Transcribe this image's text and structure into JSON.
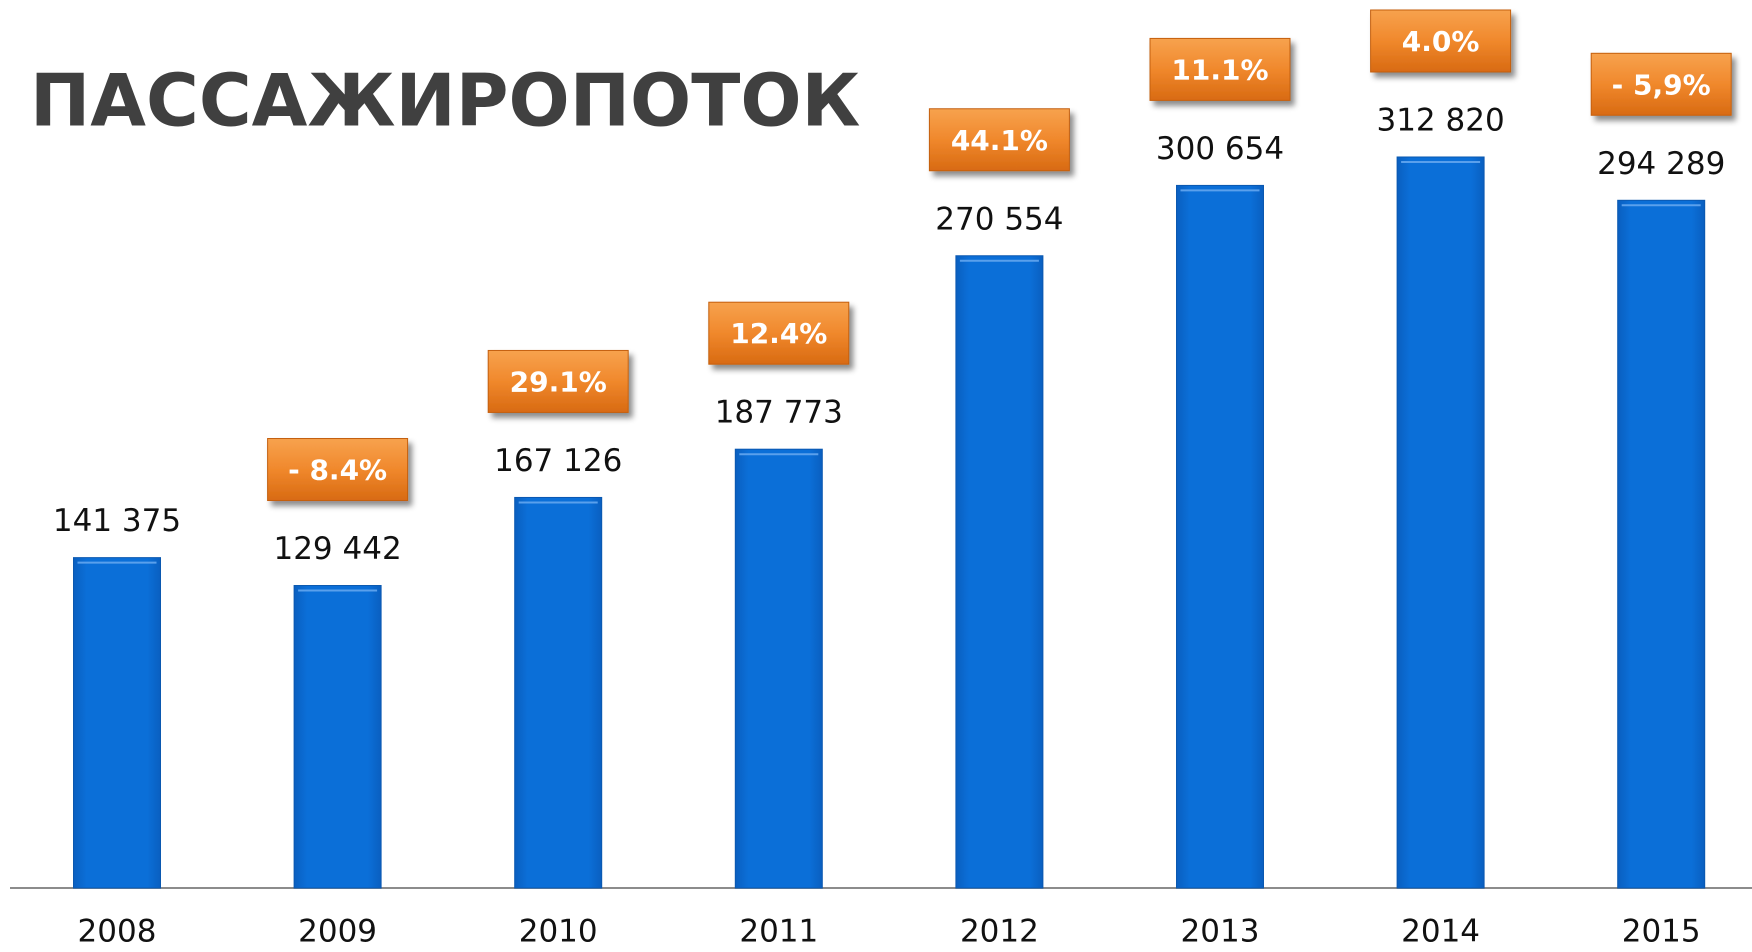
{
  "chart_data": {
    "type": "bar",
    "title": "ПАССАЖИРОПОТОК",
    "categories": [
      "2008",
      "2009",
      "2010",
      "2011",
      "2012",
      "2013",
      "2014",
      "2015"
    ],
    "values": [
      141375,
      129442,
      167126,
      187773,
      270554,
      300654,
      312820,
      294289
    ],
    "value_labels": [
      "141 375",
      "129 442",
      "167 126",
      "187 773",
      "270 554",
      "300 654",
      "312 820",
      "294 289"
    ],
    "growth_labels": [
      null,
      "- 8.4%",
      "29.1%",
      "12.4%",
      "44.1%",
      "11.1%",
      "4.0%",
      "- 5,9%"
    ],
    "color": "#0b6fd8",
    "label_color": "#f0882c",
    "ylim": [
      0,
      380000
    ]
  }
}
